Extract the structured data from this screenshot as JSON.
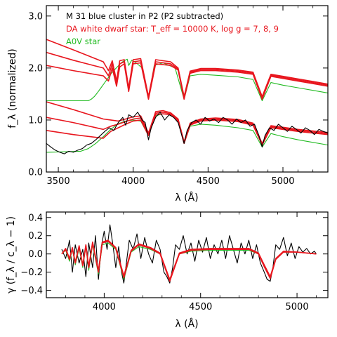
{
  "chart_data": [
    {
      "type": "line",
      "xlabel": "λ (Å)",
      "ylabel": "f_λ (normalized)",
      "xlim": [
        3420,
        5300
      ],
      "ylim": [
        0.0,
        3.2
      ],
      "x_ticks": [
        "3500",
        "4000",
        "4500",
        "5000"
      ],
      "x_tick_values": [
        3500,
        4000,
        4500,
        5000
      ],
      "y_ticks": [
        "0.0",
        "1.0",
        "2.0",
        "3.0"
      ],
      "y_tick_values": [
        0,
        1,
        2,
        3
      ],
      "legend": [
        {
          "text": "M 31 blue cluster in P2 (P2 subtracted)",
          "color": "#000000"
        },
        {
          "text": "DA white dwarf star: T_eff = 10000 K, log g = 7, 8, 9",
          "color": "#e8161e"
        },
        {
          "text": "A0V star",
          "color": "#22bb22"
        }
      ],
      "legend_placement": "top",
      "series": [
        {
          "color": "#22bb22",
          "x": [
            3420,
            3700,
            3720,
            3740,
            3760,
            3780,
            3800,
            3820,
            3840,
            3860,
            3880,
            3900,
            3920,
            3940,
            3960,
            3970,
            3990,
            4020,
            4060,
            4102,
            4140,
            4200,
            4280,
            4340,
            4380,
            4450,
            4550,
            4700,
            4800,
            4861,
            4920,
            5000,
            5100,
            5200,
            5300
          ],
          "y": [
            1.37,
            1.37,
            1.4,
            1.45,
            1.52,
            1.6,
            1.68,
            1.76,
            1.84,
            1.92,
            1.98,
            2.04,
            2.1,
            2.14,
            2.17,
            2.05,
            2.15,
            2.1,
            2.0,
            1.4,
            2.05,
            2.1,
            2.0,
            1.4,
            1.85,
            1.88,
            1.86,
            1.83,
            1.78,
            1.37,
            1.72,
            1.67,
            1.62,
            1.57,
            1.52
          ]
        },
        {
          "color": "#e8161e",
          "x": [
            3420,
            3600,
            3800,
            3835,
            3860,
            3889,
            3910,
            3940,
            3970,
            4000,
            4050,
            4102,
            4150,
            4250,
            4300,
            4340,
            4380,
            4450,
            4550,
            4700,
            4800,
            4861,
            4920,
            5000,
            5100,
            5200,
            5300
          ],
          "y": [
            2.05,
            1.95,
            1.85,
            1.75,
            2.0,
            1.65,
            2.02,
            2.08,
            1.55,
            2.08,
            2.1,
            1.4,
            2.08,
            2.05,
            1.96,
            1.4,
            1.9,
            1.95,
            1.95,
            1.92,
            1.88,
            1.4,
            1.84,
            1.8,
            1.75,
            1.7,
            1.65
          ]
        },
        {
          "color": "#e8161e",
          "x": [
            3420,
            3600,
            3800,
            3835,
            3860,
            3889,
            3910,
            3940,
            3970,
            4000,
            4050,
            4102,
            4150,
            4250,
            4300,
            4340,
            4380,
            4450,
            4550,
            4700,
            4800,
            4861,
            4920,
            5000,
            5100,
            5200,
            5300
          ],
          "y": [
            2.3,
            2.15,
            2.0,
            1.85,
            2.08,
            1.7,
            2.08,
            2.12,
            1.58,
            2.12,
            2.14,
            1.42,
            2.12,
            2.08,
            1.98,
            1.42,
            1.92,
            1.97,
            1.97,
            1.94,
            1.9,
            1.42,
            1.86,
            1.82,
            1.77,
            1.72,
            1.67
          ]
        },
        {
          "color": "#e8161e",
          "x": [
            3420,
            3600,
            3800,
            3835,
            3860,
            3889,
            3910,
            3940,
            3970,
            4000,
            4050,
            4102,
            4150,
            4250,
            4300,
            4340,
            4380,
            4450,
            4550,
            4700,
            4800,
            4861,
            4920,
            5000,
            5100,
            5200,
            5300
          ],
          "y": [
            2.55,
            2.35,
            2.12,
            1.95,
            2.14,
            1.75,
            2.14,
            2.16,
            1.62,
            2.16,
            2.18,
            1.45,
            2.16,
            2.12,
            2.0,
            1.45,
            1.94,
            1.99,
            1.99,
            1.96,
            1.92,
            1.45,
            1.88,
            1.84,
            1.79,
            1.74,
            1.69
          ]
        },
        {
          "color": "#22bb22",
          "x": [
            3420,
            3650,
            3700,
            3750,
            3800,
            3850,
            3900,
            3950,
            4000,
            4050,
            4102,
            4150,
            4200,
            4250,
            4300,
            4340,
            4380,
            4450,
            4550,
            4700,
            4800,
            4861,
            4920,
            5000,
            5100,
            5200,
            5300
          ],
          "y": [
            0.38,
            0.4,
            0.45,
            0.55,
            0.68,
            0.82,
            0.93,
            0.98,
            1.0,
            0.98,
            0.7,
            1.08,
            1.12,
            1.1,
            1.0,
            0.55,
            0.88,
            0.92,
            0.9,
            0.85,
            0.8,
            0.48,
            0.74,
            0.68,
            0.62,
            0.57,
            0.52
          ]
        },
        {
          "color": "#e8161e",
          "x": [
            3420,
            3600,
            3800,
            3850,
            3900,
            3950,
            4000,
            4050,
            4102,
            4150,
            4200,
            4250,
            4300,
            4340,
            4380,
            4450,
            4550,
            4700,
            4800,
            4861,
            4920,
            5000,
            5100,
            5200,
            5300
          ],
          "y": [
            0.8,
            0.72,
            0.65,
            0.78,
            0.85,
            0.92,
            0.98,
            1.0,
            0.7,
            1.1,
            1.12,
            1.1,
            0.98,
            0.55,
            0.9,
            0.98,
            1.0,
            0.97,
            0.9,
            0.52,
            0.85,
            0.82,
            0.78,
            0.75,
            0.72
          ]
        },
        {
          "color": "#e8161e",
          "x": [
            3420,
            3600,
            3800,
            3850,
            3900,
            3950,
            4000,
            4050,
            4102,
            4150,
            4200,
            4250,
            4300,
            4340,
            4380,
            4450,
            4550,
            4700,
            4800,
            4861,
            4920,
            5000,
            5100,
            5200,
            5300
          ],
          "y": [
            1.05,
            0.95,
            0.82,
            0.88,
            0.92,
            0.97,
            1.02,
            1.04,
            0.72,
            1.13,
            1.15,
            1.12,
            1.0,
            0.56,
            0.92,
            1.0,
            1.02,
            0.99,
            0.92,
            0.53,
            0.87,
            0.84,
            0.8,
            0.77,
            0.74
          ]
        },
        {
          "color": "#e8161e",
          "x": [
            3420,
            3600,
            3800,
            3850,
            3900,
            3950,
            4000,
            4050,
            4102,
            4150,
            4200,
            4250,
            4300,
            4340,
            4380,
            4450,
            4550,
            4700,
            4800,
            4861,
            4920,
            5000,
            5100,
            5200,
            5300
          ],
          "y": [
            1.35,
            1.2,
            1.02,
            1.0,
            0.98,
            1.02,
            1.06,
            1.08,
            0.75,
            1.16,
            1.18,
            1.14,
            1.02,
            0.58,
            0.94,
            1.02,
            1.04,
            1.01,
            0.94,
            0.55,
            0.89,
            0.86,
            0.82,
            0.79,
            0.76
          ]
        },
        {
          "color": "#000000",
          "x": [
            3420,
            3450,
            3480,
            3510,
            3540,
            3570,
            3600,
            3630,
            3660,
            3690,
            3720,
            3750,
            3780,
            3810,
            3840,
            3870,
            3900,
            3930,
            3950,
            3970,
            4000,
            4030,
            4060,
            4080,
            4102,
            4120,
            4150,
            4180,
            4210,
            4240,
            4270,
            4300,
            4320,
            4340,
            4360,
            4390,
            4420,
            4450,
            4480,
            4510,
            4540,
            4570,
            4600,
            4630,
            4660,
            4690,
            4720,
            4750,
            4780,
            4810,
            4840,
            4861,
            4880,
            4910,
            4940,
            4970,
            5000,
            5030,
            5060,
            5090,
            5120,
            5150,
            5180,
            5210,
            5240,
            5270,
            5300
          ],
          "y": [
            0.55,
            0.48,
            0.42,
            0.38,
            0.35,
            0.4,
            0.38,
            0.42,
            0.45,
            0.52,
            0.55,
            0.62,
            0.7,
            0.78,
            0.85,
            0.8,
            0.95,
            1.05,
            0.9,
            1.1,
            1.05,
            1.15,
            1.0,
            0.95,
            0.62,
            0.85,
            1.05,
            1.15,
            1.0,
            1.1,
            1.05,
            0.95,
            0.75,
            0.55,
            0.8,
            0.95,
            1.0,
            0.92,
            1.05,
            0.98,
            1.02,
            0.95,
            1.05,
            1.0,
            0.92,
            1.02,
            0.95,
            1.0,
            0.88,
            0.92,
            0.7,
            0.48,
            0.7,
            0.85,
            0.8,
            0.92,
            0.85,
            0.78,
            0.88,
            0.82,
            0.75,
            0.85,
            0.8,
            0.72,
            0.82,
            0.78,
            0.75
          ]
        }
      ]
    },
    {
      "type": "line",
      "xlabel": "λ (Å)",
      "ylabel": "γ (f_λ / c_λ − 1)",
      "xlim": [
        3700,
        5160
      ],
      "ylim": [
        -0.48,
        0.46
      ],
      "x_ticks": [
        "4000",
        "4500",
        "5000"
      ],
      "x_tick_values": [
        4000,
        4500,
        5000
      ],
      "y_ticks": [
        "0.4",
        "0.2",
        "0.0",
        "−0.2",
        "−0.4"
      ],
      "y_tick_values": [
        0.4,
        0.2,
        0.0,
        -0.2,
        -0.4
      ],
      "series": [
        {
          "color": "#000000",
          "x": [
            3780,
            3800,
            3820,
            3835,
            3850,
            3870,
            3889,
            3905,
            3920,
            3940,
            3955,
            3970,
            3985,
            4000,
            4015,
            4030,
            4045,
            4060,
            4075,
            4090,
            4102,
            4115,
            4130,
            4150,
            4170,
            4190,
            4210,
            4230,
            4250,
            4270,
            4290,
            4310,
            4325,
            4340,
            4355,
            4370,
            4390,
            4410,
            4430,
            4450,
            4470,
            4490,
            4510,
            4530,
            4550,
            4570,
            4590,
            4610,
            4630,
            4650,
            4670,
            4690,
            4710,
            4730,
            4750,
            4770,
            4790,
            4810,
            4830,
            4845,
            4861,
            4875,
            4890,
            4910,
            4930,
            4950,
            4970,
            4990,
            5010,
            5030,
            5050,
            5070,
            5090,
            5100
          ],
          "y": [
            0.05,
            -0.05,
            0.15,
            -0.2,
            0.1,
            -0.1,
            0.05,
            -0.25,
            0.12,
            -0.15,
            0.2,
            -0.28,
            0.08,
            0.25,
            0.05,
            0.32,
            0.1,
            -0.15,
            0.08,
            -0.2,
            -0.32,
            -0.1,
            0.15,
            0.05,
            0.22,
            -0.05,
            0.18,
            0.0,
            -0.1,
            0.15,
            0.05,
            -0.2,
            -0.25,
            -0.32,
            -0.15,
            0.1,
            0.05,
            0.2,
            0.0,
            0.12,
            -0.08,
            0.15,
            0.02,
            0.18,
            -0.05,
            0.1,
            0.0,
            0.15,
            -0.05,
            0.2,
            0.05,
            -0.1,
            0.12,
            0.0,
            0.15,
            -0.05,
            0.1,
            -0.1,
            -0.2,
            -0.28,
            -0.3,
            -0.15,
            0.1,
            0.05,
            0.18,
            -0.02,
            0.12,
            -0.05,
            0.08,
            0.02,
            0.06,
            0.0,
            0.03,
            0.0
          ]
        },
        {
          "color": "#22bb22",
          "x": [
            3780,
            3800,
            3820,
            3835,
            3850,
            3870,
            3889,
            3905,
            3920,
            3940,
            3970,
            3990,
            4020,
            4060,
            4102,
            4140,
            4180,
            4240,
            4290,
            4340,
            4390,
            4450,
            4550,
            4650,
            4750,
            4800,
            4830,
            4861,
            4890,
            4930,
            5000,
            5100
          ],
          "y": [
            0.0,
            0.04,
            -0.08,
            0.05,
            -0.12,
            0.06,
            -0.15,
            0.08,
            -0.18,
            0.1,
            -0.22,
            0.1,
            0.12,
            0.05,
            -0.28,
            0.02,
            0.08,
            0.05,
            0.0,
            -0.28,
            0.0,
            0.03,
            0.04,
            0.04,
            0.04,
            0.0,
            -0.12,
            -0.25,
            -0.05,
            0.02,
            0.02,
            0.0
          ]
        },
        {
          "color": "#e8161e",
          "x": [
            3780,
            3800,
            3820,
            3835,
            3850,
            3870,
            3889,
            3905,
            3920,
            3940,
            3970,
            3990,
            4020,
            4060,
            4102,
            4140,
            4180,
            4240,
            4290,
            4340,
            4390,
            4450,
            4550,
            4650,
            4750,
            4800,
            4830,
            4861,
            4890,
            4930,
            5000,
            5100
          ],
          "y": [
            0.0,
            0.05,
            -0.06,
            0.06,
            -0.1,
            0.08,
            -0.13,
            0.09,
            -0.15,
            0.12,
            -0.2,
            0.12,
            0.14,
            0.06,
            -0.26,
            0.03,
            0.1,
            0.06,
            0.0,
            -0.3,
            0.0,
            0.04,
            0.05,
            0.05,
            0.05,
            0.0,
            -0.14,
            -0.27,
            -0.06,
            0.02,
            0.02,
            0.0
          ]
        },
        {
          "color": "#e8161e",
          "x": [
            3780,
            3800,
            3820,
            3835,
            3850,
            3870,
            3889,
            3905,
            3920,
            3940,
            3970,
            3990,
            4020,
            4060,
            4102,
            4140,
            4180,
            4240,
            4290,
            4340,
            4390,
            4450,
            4550,
            4650,
            4750,
            4800,
            4830,
            4861,
            4890,
            4930,
            5000,
            5100
          ],
          "y": [
            0.0,
            0.06,
            -0.05,
            0.07,
            -0.09,
            0.09,
            -0.12,
            0.1,
            -0.14,
            0.13,
            -0.18,
            0.13,
            0.15,
            0.07,
            -0.24,
            0.04,
            0.11,
            0.07,
            0.01,
            -0.28,
            0.01,
            0.05,
            0.06,
            0.06,
            0.06,
            0.01,
            -0.12,
            -0.25,
            -0.05,
            0.03,
            0.02,
            0.0
          ]
        }
      ]
    }
  ]
}
